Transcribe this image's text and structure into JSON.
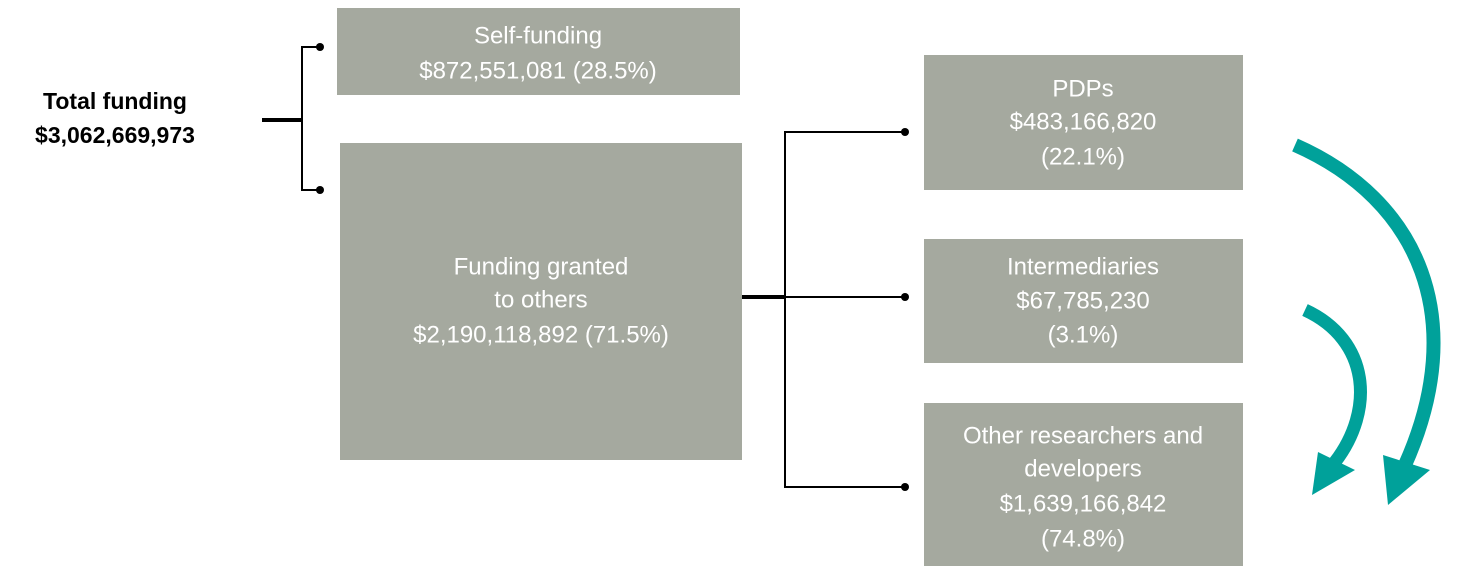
{
  "root": {
    "lines": [
      "Total funding",
      "$3,062,669,973"
    ]
  },
  "nodes": [
    {
      "lines": [
        "Self-funding",
        "$872,551,081 (28.5%)"
      ]
    },
    {
      "lines": [
        "Funding granted",
        "to others",
        "$2,190,118,892 (71.5%)"
      ]
    },
    {
      "lines": [
        "PDPs",
        "$483,166,820",
        "(22.1%)"
      ]
    },
    {
      "lines": [
        "Intermediaries",
        "$67,785,230",
        "(3.1%)"
      ]
    },
    {
      "lines": [
        "Other researchers and",
        "developers",
        "$1,639,166,842",
        "(74.8%)"
      ]
    }
  ]
}
